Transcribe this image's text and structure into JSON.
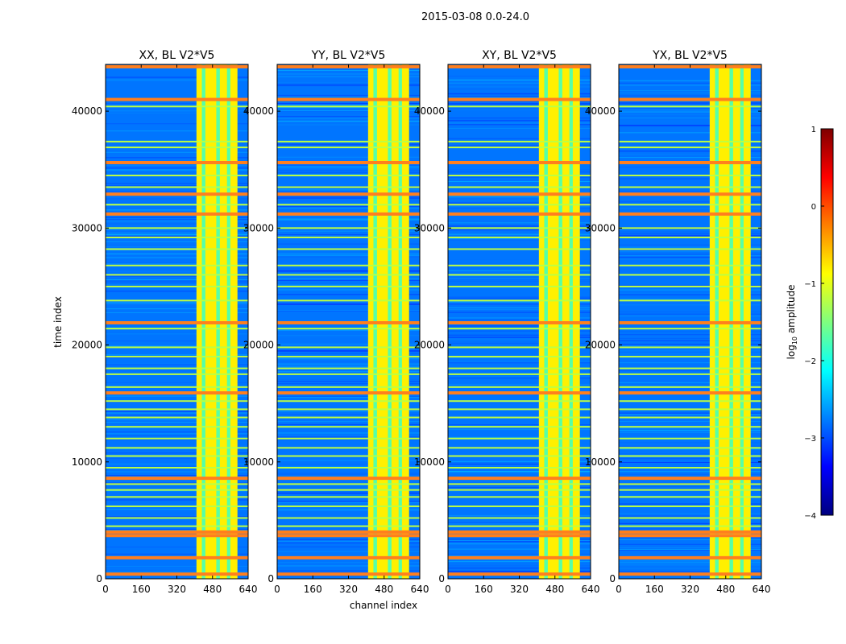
{
  "figure": {
    "suptitle": "2015-03-08 0.0-24.0",
    "ylabel": "time index",
    "xlabel": "channel index",
    "colorbar_label": "log",
    "colorbar_label_sub": "10",
    "colorbar_label_rest": " amplitude"
  },
  "colors": {
    "jet": [
      "#00007f",
      "#0000ff",
      "#007fff",
      "#00ffff",
      "#7fff7f",
      "#ffff00",
      "#ff7f00",
      "#ff0000",
      "#7f0000"
    ],
    "panel_background": "#0a47e0",
    "rfi_band": "#ff7f1e"
  },
  "chart_data": {
    "type": "heatmap",
    "panels": [
      {
        "title": "XX, BL V2*V5",
        "polarization": "XX"
      },
      {
        "title": "YY, BL V2*V5",
        "polarization": "YY"
      },
      {
        "title": "XY, BL V2*V5",
        "polarization": "XY"
      },
      {
        "title": "YX, BL V2*V5",
        "polarization": "YX"
      }
    ],
    "x_axis": {
      "label": "channel index",
      "range": [
        0,
        640
      ],
      "ticks": [
        0,
        160,
        320,
        480,
        640
      ]
    },
    "y_axis": {
      "label": "time index",
      "range": [
        0,
        44000
      ],
      "ticks": [
        0,
        10000,
        20000,
        30000,
        40000
      ]
    },
    "colorbar": {
      "label": "log10 amplitude",
      "range": [
        -4,
        1
      ],
      "ticks": [
        1,
        0,
        -1,
        -2,
        -3,
        -4
      ],
      "tick_labels": [
        "1",
        "0",
        "−1",
        "−2",
        "−3",
        "−4"
      ],
      "colormap": "jet"
    },
    "features": {
      "bright_channel_block": {
        "channel_range": [
          408,
          592
        ],
        "log10_amplitude": -0.8,
        "gap_channels": [
          432,
          448,
          497,
          513,
          545,
          560
        ]
      },
      "background_log10_amplitude": -2.8,
      "flagged_time_rows_high": [
        400,
        1800,
        3700,
        4000,
        8600,
        15900,
        21900,
        31200,
        32900,
        35600,
        41000,
        43800
      ],
      "flagged_time_rows_mid": [
        4500,
        5200,
        6200,
        7000,
        7600,
        8100,
        9500,
        10500,
        11200,
        12000,
        13000,
        13800,
        14500,
        15200,
        16400,
        17500,
        18000,
        19000,
        19800,
        21400,
        23800,
        25000,
        26000,
        26800,
        28200,
        29200,
        30000,
        32000,
        33500,
        34500,
        36900,
        37400,
        40400
      ]
    }
  }
}
